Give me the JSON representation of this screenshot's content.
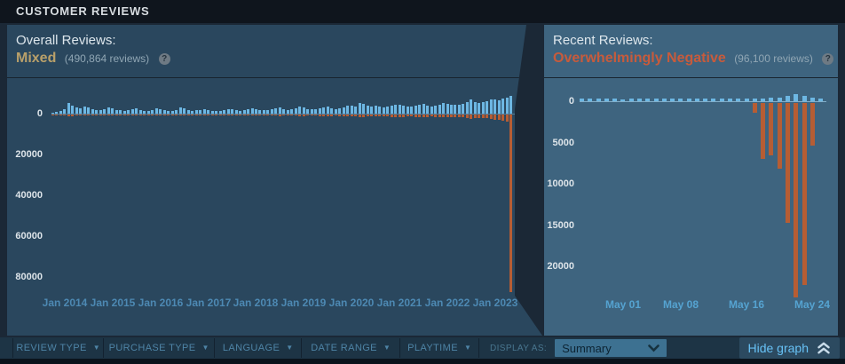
{
  "page": {
    "title": "CUSTOMER REVIEWS"
  },
  "overall": {
    "label": "Overall Reviews:",
    "verdict": "Mixed",
    "count_text": "(490,864 reviews)",
    "help_icon": "?"
  },
  "recent": {
    "label": "Recent Reviews:",
    "verdict": "Overwhelmingly Negative",
    "count_text": "(96,100 reviews)",
    "help_icon": "?"
  },
  "filters": {
    "items": [
      {
        "label": "REVIEW TYPE"
      },
      {
        "label": "PURCHASE TYPE"
      },
      {
        "label": "LANGUAGE"
      },
      {
        "label": "DATE RANGE"
      },
      {
        "label": "PLAYTIME"
      }
    ],
    "display_as_label": "DISPLAY AS:",
    "display_as_value": "Summary",
    "hide_graph_label": "Hide graph"
  },
  "colors": {
    "positive_bar": "#6db7e3",
    "negative_bar": "#b65d34",
    "verdict_mixed": "#b9a06a",
    "verdict_negative": "#c75b3c",
    "link_blue": "#67c1f5",
    "panel_left_bg": "#2a475e",
    "panel_right_bg": "#3e647f",
    "page_bg": "#1b2836"
  },
  "chart_data": [
    {
      "type": "bar",
      "title": "Overall reviews by month",
      "x_unit": "month",
      "x_start": "2013-10",
      "x_end": "2023-05",
      "x_tick_labels": [
        "Jan 2014",
        "Jan 2015",
        "Jan 2016",
        "Jan 2017",
        "Jan 2018",
        "Jan 2019",
        "Jan 2020",
        "Jan 2021",
        "Jan 2022",
        "Jan 2023"
      ],
      "x_tick_indices": [
        3,
        15,
        27,
        39,
        51,
        63,
        75,
        87,
        99,
        111
      ],
      "y_ticks": [
        0,
        20000,
        40000,
        60000,
        80000
      ],
      "y_tick_labels": [
        "0",
        "20000",
        "40000",
        "60000",
        "80000"
      ],
      "y_axis_direction": "negative_down",
      "grid": false,
      "legend": false,
      "series": [
        {
          "name": "positive",
          "color": "#6db7e3",
          "values": [
            400,
            700,
            1300,
            2200,
            5200,
            3900,
            3000,
            2600,
            3500,
            3000,
            2200,
            1700,
            1700,
            2200,
            3000,
            2600,
            1700,
            1700,
            1300,
            1700,
            2200,
            2600,
            1700,
            1300,
            1300,
            1700,
            2600,
            2200,
            1700,
            1300,
            1300,
            1700,
            3000,
            2600,
            1700,
            1300,
            1700,
            1700,
            2200,
            1700,
            1300,
            1300,
            1300,
            1700,
            2200,
            2200,
            1700,
            1300,
            1700,
            2200,
            2600,
            2200,
            1700,
            1700,
            1700,
            2200,
            2600,
            3000,
            2200,
            1700,
            2200,
            2600,
            3500,
            3000,
            2200,
            2200,
            2200,
            2600,
            3000,
            3500,
            2600,
            2200,
            2600,
            3000,
            3900,
            3900,
            3500,
            5200,
            4800,
            3900,
            3500,
            3900,
            3500,
            3000,
            3500,
            3900,
            4300,
            4300,
            3900,
            3500,
            3500,
            3900,
            4300,
            4800,
            3900,
            3500,
            3900,
            4300,
            5200,
            4800,
            4300,
            4300,
            4300,
            4800,
            5700,
            7000,
            5700,
            5200,
            5700,
            6100,
            7000,
            7000,
            6500,
            7400,
            7800,
            8700
          ]
        },
        {
          "name": "negative",
          "color": "#b65d34",
          "values": [
            200,
            300,
            400,
            600,
            900,
            700,
            600,
            500,
            600,
            600,
            500,
            400,
            400,
            500,
            600,
            500,
            400,
            400,
            400,
            400,
            500,
            500,
            400,
            400,
            400,
            400,
            500,
            500,
            400,
            400,
            400,
            400,
            500,
            500,
            400,
            400,
            400,
            400,
            500,
            400,
            400,
            400,
            400,
            400,
            500,
            500,
            400,
            400,
            400,
            500,
            600,
            500,
            400,
            400,
            400,
            500,
            600,
            700,
            500,
            400,
            500,
            600,
            800,
            700,
            600,
            600,
            600,
            700,
            800,
            900,
            700,
            600,
            700,
            800,
            1000,
            1000,
            900,
            1300,
            1200,
            1000,
            900,
            1000,
            900,
            900,
            1000,
            1100,
            1200,
            1200,
            1100,
            1000,
            1000,
            1100,
            1200,
            1300,
            1100,
            1000,
            1100,
            1200,
            1400,
            1400,
            1300,
            1300,
            1300,
            1400,
            1700,
            2200,
            1700,
            1600,
            1700,
            1900,
            2200,
            2600,
            2600,
            3000,
            3500,
            87000
          ]
        }
      ]
    },
    {
      "type": "bar",
      "title": "Recent reviews by day",
      "x_unit": "day",
      "x_start": "Apr 26",
      "x_end": "May 25",
      "x_tick_labels": [
        "May 01",
        "May 08",
        "May 16",
        "May 24"
      ],
      "x_tick_indices": [
        5,
        12,
        20,
        28
      ],
      "y_ticks": [
        0,
        5000,
        10000,
        15000,
        20000
      ],
      "y_tick_labels": [
        "0",
        "5000",
        "10000",
        "15000",
        "20000"
      ],
      "y_axis_direction": "negative_down",
      "grid": false,
      "legend": false,
      "series": [
        {
          "name": "positive",
          "color": "#6db7e3",
          "values": [
            320,
            280,
            300,
            340,
            300,
            260,
            300,
            320,
            360,
            300,
            280,
            300,
            340,
            300,
            320,
            280,
            300,
            340,
            300,
            280,
            320,
            360,
            340,
            400,
            480,
            650,
            860,
            600,
            430,
            300
          ]
        },
        {
          "name": "negative",
          "color": "#b65d34",
          "values": [
            0,
            0,
            0,
            0,
            0,
            0,
            0,
            0,
            0,
            0,
            0,
            0,
            0,
            0,
            0,
            0,
            0,
            0,
            0,
            0,
            0,
            1200,
            6800,
            6300,
            8000,
            14500,
            23500,
            22000,
            5200,
            0
          ]
        }
      ]
    }
  ]
}
